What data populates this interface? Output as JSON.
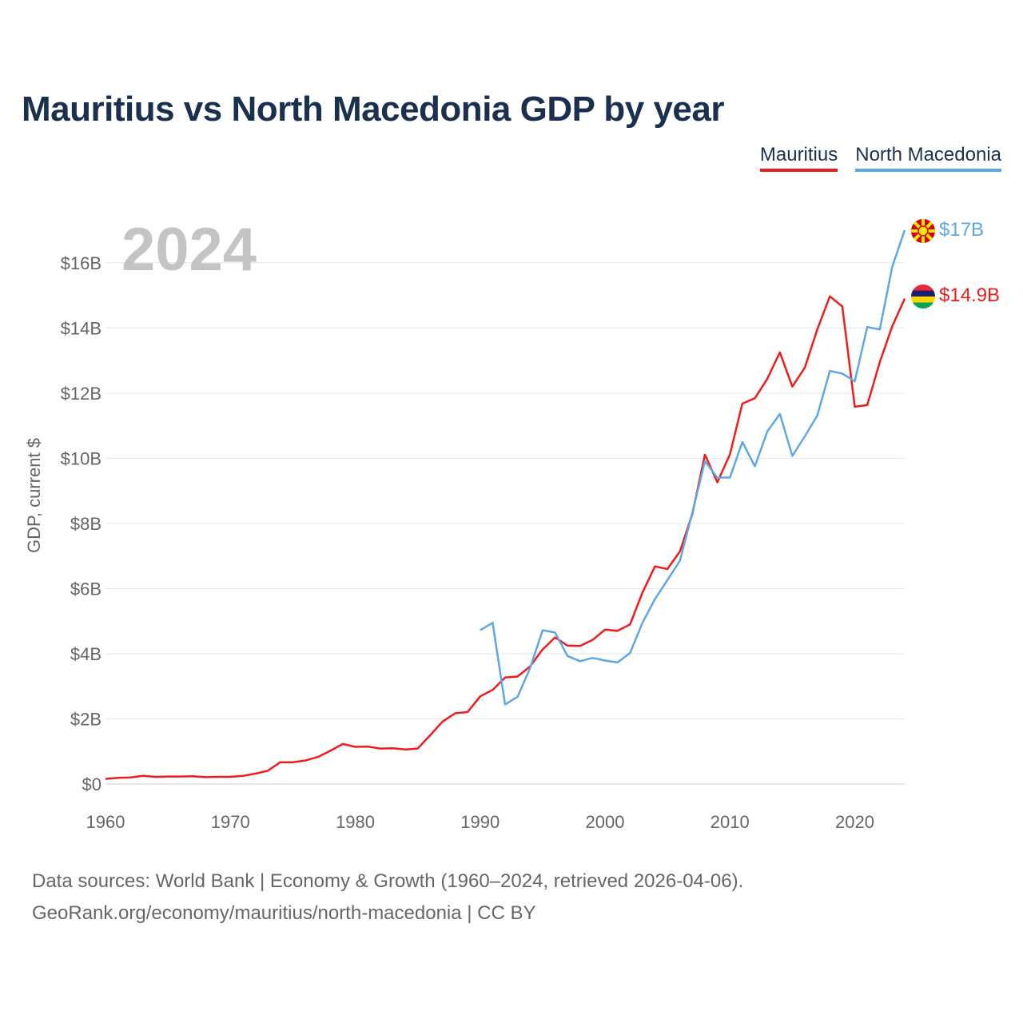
{
  "title": "Mauritius vs North Macedonia GDP by year",
  "legend": {
    "mauritius": "Mauritius",
    "north_macedonia": "North Macedonia"
  },
  "year_watermark": "2024",
  "footer": {
    "line1": "Data sources: World Bank | Economy & Growth (1960–2024, retrieved 2026-04-06).",
    "line2": "GeoRank.org/economy/mauritius/north-macedonia | CC BY"
  },
  "colors": {
    "mauritius": "#ee1c1c",
    "north_macedonia": "#5ea7e6",
    "grid": "#e6e6e6",
    "axis_text": "#666666",
    "watermark": "#c4c4c4"
  },
  "chart_data": {
    "type": "line",
    "title": "Mauritius vs North Macedonia GDP by year",
    "xlabel": "",
    "ylabel": "GDP, current $",
    "xlim": [
      1960,
      2024
    ],
    "ylim": [
      0,
      17
    ],
    "x_ticks": [
      1960,
      1970,
      1980,
      1990,
      2000,
      2010,
      2020
    ],
    "x_tick_labels": [
      "1960",
      "1970",
      "1980",
      "1990",
      "2000",
      "2010",
      "2020"
    ],
    "y_ticks": [
      0,
      2,
      4,
      6,
      8,
      10,
      12,
      14,
      16
    ],
    "y_tick_labels": [
      "$0",
      "$2B",
      "$4B",
      "$6B",
      "$8B",
      "$10B",
      "$12B",
      "$14B",
      "$16B"
    ],
    "grid": true,
    "legend_position": "top-right",
    "series": [
      {
        "name": "Mauritius",
        "color": "#ee1c1c",
        "end_label": "$14.9B",
        "flag_icon": "mauritius-flag-icon",
        "x": [
          1960,
          1961,
          1962,
          1963,
          1964,
          1965,
          1966,
          1967,
          1968,
          1969,
          1970,
          1971,
          1972,
          1973,
          1974,
          1975,
          1976,
          1977,
          1978,
          1979,
          1980,
          1981,
          1982,
          1983,
          1984,
          1985,
          1986,
          1987,
          1988,
          1989,
          1990,
          1991,
          1992,
          1993,
          1994,
          1995,
          1996,
          1997,
          1998,
          1999,
          2000,
          2001,
          2002,
          2003,
          2004,
          2005,
          2006,
          2007,
          2008,
          2009,
          2010,
          2011,
          2012,
          2013,
          2014,
          2015,
          2016,
          2017,
          2018,
          2019,
          2020,
          2021,
          2022,
          2023,
          2024
        ],
        "values": [
          0.16,
          0.19,
          0.2,
          0.25,
          0.22,
          0.23,
          0.23,
          0.24,
          0.21,
          0.22,
          0.22,
          0.25,
          0.32,
          0.41,
          0.67,
          0.67,
          0.72,
          0.83,
          1.02,
          1.23,
          1.14,
          1.15,
          1.09,
          1.1,
          1.06,
          1.09,
          1.5,
          1.92,
          2.17,
          2.21,
          2.69,
          2.89,
          3.27,
          3.3,
          3.61,
          4.13,
          4.5,
          4.25,
          4.24,
          4.42,
          4.74,
          4.7,
          4.9,
          5.88,
          6.68,
          6.6,
          7.14,
          8.3,
          10.11,
          9.26,
          10.12,
          11.68,
          11.84,
          12.44,
          13.25,
          12.2,
          12.78,
          13.95,
          14.97,
          14.66,
          11.58,
          11.63,
          12.95,
          14.05,
          14.9
        ]
      },
      {
        "name": "North Macedonia",
        "color": "#5ea7e6",
        "end_label": "$17B",
        "flag_icon": "north-macedonia-flag-icon",
        "x": [
          1990,
          1991,
          1992,
          1993,
          1994,
          1995,
          1996,
          1997,
          1998,
          1999,
          2000,
          2001,
          2002,
          2003,
          2004,
          2005,
          2006,
          2007,
          2008,
          2009,
          2010,
          2011,
          2012,
          2013,
          2014,
          2015,
          2016,
          2017,
          2018,
          2019,
          2020,
          2021,
          2022,
          2023,
          2024
        ],
        "values": [
          4.72,
          4.95,
          2.44,
          2.68,
          3.56,
          4.72,
          4.65,
          3.93,
          3.77,
          3.87,
          3.79,
          3.73,
          4.02,
          4.95,
          5.68,
          6.26,
          6.86,
          8.34,
          9.91,
          9.4,
          9.41,
          10.5,
          9.75,
          10.82,
          11.36,
          10.07,
          10.67,
          11.31,
          12.68,
          12.6,
          12.36,
          14.03,
          13.95,
          15.88,
          17.0
        ]
      }
    ]
  }
}
